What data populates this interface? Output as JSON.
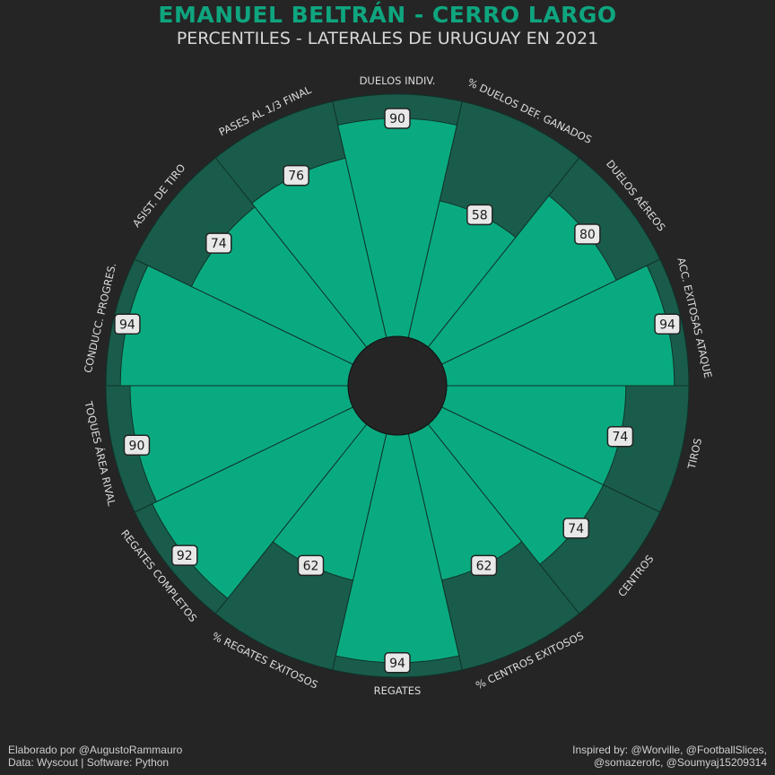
{
  "title": "EMANUEL BELTRÁN - CERRO LARGO",
  "subtitle": "PERCENTILES - LATERALES DE URUGUAY EN 2021",
  "footer": {
    "left_line1": "Elaborado por @AugustoRammauro",
    "left_line2": "Data: Wyscout | Software: Python",
    "right_line1": "Inspired by: @Worville, @FootballSlices,",
    "right_line2": "@somazerofc, @Soumyaj15209314"
  },
  "colors": {
    "background": "#252525",
    "value_slice": "#0aaa80",
    "max_slice": "#1a5c4b",
    "edge": "#0f3329",
    "center": "#252525",
    "label_box_bg": "#e8e8e8",
    "label_box_border": "#222222",
    "category_text": "#dcdcdc",
    "title": "#0ea57f"
  },
  "chart_data": {
    "type": "polar-bar",
    "max_value": 100,
    "categories": [
      "DUELOS INDIV.",
      "% DUELOS DEF. GANADOS",
      "DUELOS AÉREOS",
      "ACC. EXITOSAS ATAQUE",
      "TIROS",
      "CENTROS",
      "% CENTROS EXITOSOS",
      "REGATES",
      "% REGATES EXITOSOS",
      "REGATES COMPLETOS",
      "TOQUES ÁREA RIVAL",
      "CONDUCC. PROGRES.",
      "ASIST. DE TIRO",
      "PASES AL 1/3 FINAL"
    ],
    "values": [
      90,
      58,
      80,
      94,
      74,
      74,
      62,
      94,
      62,
      92,
      90,
      94,
      74,
      76
    ],
    "value_labels": [
      "90",
      "58",
      "80",
      "94",
      "74",
      "74",
      "62",
      "94",
      "62",
      "92",
      "90",
      "94",
      "74",
      "76"
    ]
  }
}
